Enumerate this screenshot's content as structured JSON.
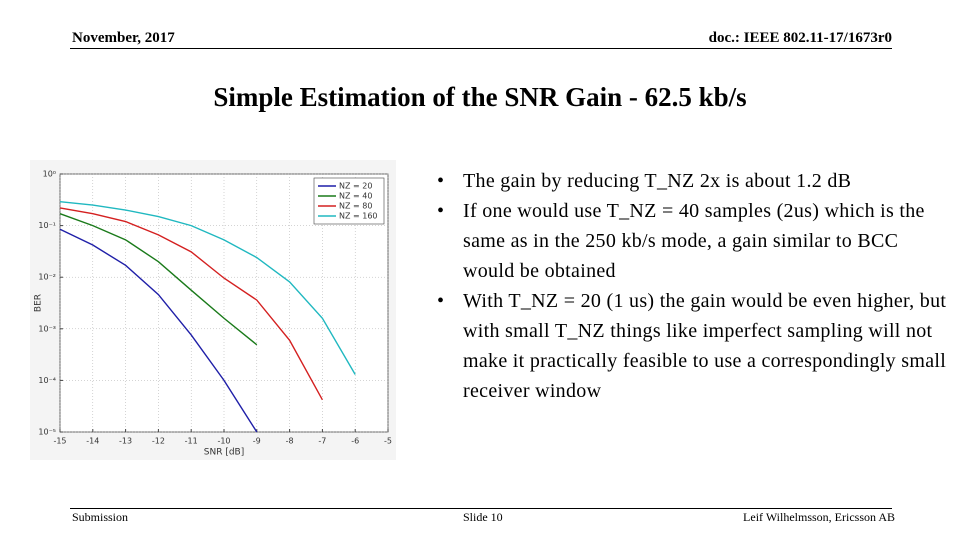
{
  "header": {
    "date": "November, 2017",
    "doc": "doc.: IEEE 802.11-17/1673r0"
  },
  "title": "Simple Estimation of the SNR Gain - 62.5 kb/s",
  "bullets": [
    "The gain by reducing T_NZ 2x is about 1.2 dB",
    "If one would use T_NZ = 40 samples (2us) which is the same as in the 250 kb/s mode, a gain similar to BCC would be obtained",
    "With T_NZ = 20 (1 us) the gain would be even higher, but with small T_NZ things like imperfect sampling will not make it practically feasible to use a correspondingly small receiver window"
  ],
  "footer": {
    "left": "Submission",
    "center": "Slide 10",
    "right": "Leif Wilhelmsson, Ericsson AB"
  },
  "chart_data": {
    "type": "line",
    "x_label": "SNR [dB]",
    "y_label": "BER",
    "x": [
      -15,
      -14,
      -13,
      -12,
      -11,
      -10,
      -9,
      -8,
      -7,
      -6,
      -5
    ],
    "series": [
      {
        "name": "NZ = 20",
        "color": "#1f1fa8",
        "values": [
          0.085,
          0.042,
          0.017,
          0.0046,
          0.00076,
          0.0001,
          1e-05,
          null,
          null,
          null,
          null
        ]
      },
      {
        "name": "NZ = 40",
        "color": "#1a7a1a",
        "values": [
          0.17,
          0.1,
          0.053,
          0.02,
          0.0056,
          0.0016,
          0.00049,
          null,
          null,
          null,
          null
        ]
      },
      {
        "name": "NZ = 80",
        "color": "#d42020",
        "values": [
          0.22,
          0.17,
          0.12,
          0.066,
          0.031,
          0.0096,
          0.0036,
          0.0006,
          4.2e-05,
          null,
          null
        ]
      },
      {
        "name": "NZ = 160",
        "color": "#20b8c0",
        "values": [
          0.29,
          0.25,
          0.2,
          0.15,
          0.1,
          0.053,
          0.024,
          0.0081,
          0.0016,
          0.00013,
          null
        ]
      }
    ],
    "xlim": [
      -15,
      -5
    ],
    "xticks": [
      -15,
      -14,
      -13,
      -12,
      -11,
      -10,
      -9,
      -8,
      -7,
      -6,
      -5
    ],
    "ylim": [
      1e-05,
      1
    ],
    "yscale": "log",
    "yticks": [
      {
        "value": 1e-05,
        "label": "10⁻⁵"
      },
      {
        "value": 0.0001,
        "label": "10⁻⁴"
      },
      {
        "value": 0.001,
        "label": "10⁻³"
      },
      {
        "value": 0.01,
        "label": "10⁻²"
      },
      {
        "value": 0.1,
        "label": "10⁻¹"
      },
      {
        "value": 1,
        "label": "10⁰"
      }
    ],
    "grid": true,
    "legend": "upper-right"
  }
}
